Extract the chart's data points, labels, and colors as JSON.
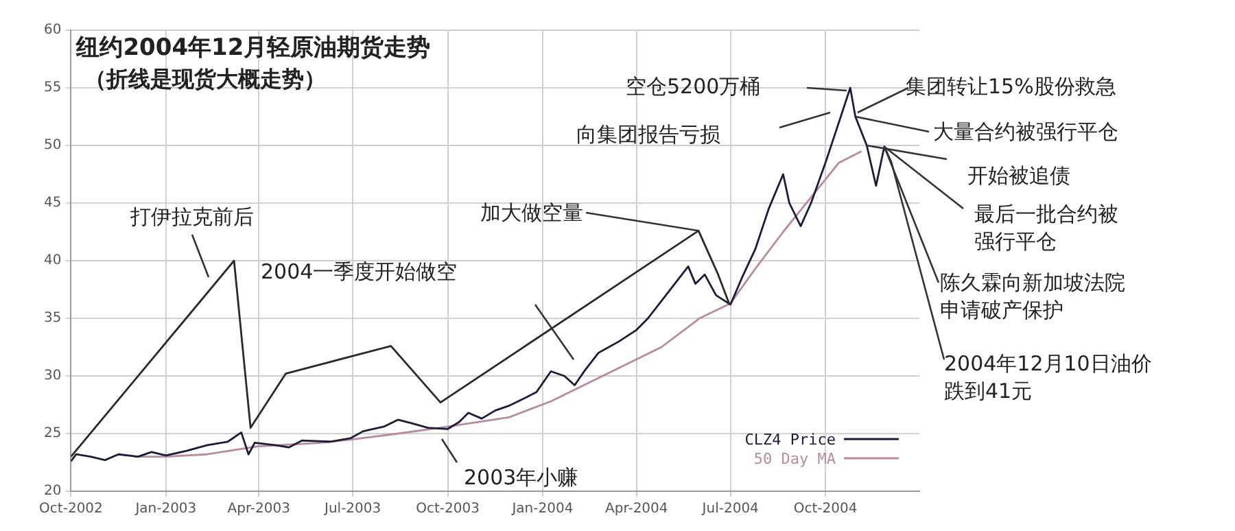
{
  "chart_data": {
    "type": "line",
    "title": "纽约2004年12月轻原油期货走势",
    "subtitle": "（折线是现货大概走势）",
    "xlim": [
      "2002-10-01",
      "2004-12-31"
    ],
    "xticks": [
      {
        "value": "2002-10-01",
        "label": "Oct-2002"
      },
      {
        "value": "2003-01-01",
        "label": "Jan-2003"
      },
      {
        "value": "2003-04-01",
        "label": "Apr-2003"
      },
      {
        "value": "2003-07-01",
        "label": "Jul-2003"
      },
      {
        "value": "2003-10-01",
        "label": "Oct-2003"
      },
      {
        "value": "2004-01-01",
        "label": "Jan-2004"
      },
      {
        "value": "2004-04-01",
        "label": "Apr-2004"
      },
      {
        "value": "2004-07-01",
        "label": "Jul-2004"
      },
      {
        "value": "2004-10-01",
        "label": "Oct-2004"
      }
    ],
    "ylim": [
      20,
      60
    ],
    "yticks": [
      20,
      25,
      30,
      35,
      40,
      45,
      50,
      55,
      60
    ],
    "grid": true,
    "legend": "bottom right",
    "marker": "none",
    "series": [
      {
        "color": "#2a2a2a",
        "x": [
          "2002-10-01",
          "2003-03-08",
          "2003-03-24",
          "2003-04-27",
          "2003-08-07",
          "2003-09-24",
          "2004-05-31",
          "2004-06-19",
          "2004-06-30"
        ],
        "values": [
          23.0,
          40.0,
          25.5,
          30.2,
          32.6,
          27.7,
          42.6,
          38.8,
          36.2
        ]
      },
      {
        "name": "CLZ4 Price",
        "color": "#1c1c3a",
        "x": [
          "2002-10-01",
          "2002-10-06",
          "2002-10-20",
          "2002-11-03",
          "2002-11-16",
          "2002-12-05",
          "2002-12-18",
          "2003-01-01",
          "2003-01-21",
          "2003-02-10",
          "2003-03-02",
          "2003-03-15",
          "2003-03-22",
          "2003-03-28",
          "2003-04-17",
          "2003-04-30",
          "2003-05-13",
          "2003-06-09",
          "2003-06-29",
          "2003-07-11",
          "2003-07-31",
          "2003-08-14",
          "2003-08-27",
          "2003-09-12",
          "2003-10-01",
          "2003-10-12",
          "2003-10-21",
          "2003-11-03",
          "2003-11-16",
          "2003-11-29",
          "2003-12-13",
          "2003-12-26",
          "2004-01-09",
          "2004-01-22",
          "2004-02-01",
          "2004-02-11",
          "2004-02-24",
          "2004-03-15",
          "2004-04-01",
          "2004-04-12",
          "2004-04-25",
          "2004-05-08",
          "2004-05-21",
          "2004-05-28",
          "2004-06-06",
          "2004-06-17",
          "2004-07-01",
          "2004-07-12",
          "2004-07-25",
          "2004-08-07",
          "2004-08-21",
          "2004-08-27",
          "2004-09-07",
          "2004-09-17",
          "2004-10-01",
          "2004-10-14",
          "2004-10-25",
          "2004-10-30",
          "2004-11-10",
          "2004-11-19",
          "2004-11-27",
          "2004-12-04"
        ],
        "values": [
          22.6,
          23.2,
          23.0,
          22.7,
          23.2,
          23.0,
          23.4,
          23.1,
          23.5,
          24.0,
          24.3,
          25.1,
          23.2,
          24.2,
          24.0,
          23.8,
          24.4,
          24.3,
          24.6,
          25.2,
          25.6,
          26.2,
          25.9,
          25.5,
          25.4,
          26.0,
          26.8,
          26.3,
          27.0,
          27.4,
          28.0,
          28.6,
          30.4,
          30.0,
          29.2,
          30.5,
          32.0,
          33.0,
          34.0,
          35.0,
          36.5,
          38.0,
          39.5,
          38.0,
          38.8,
          37.0,
          36.2,
          38.5,
          41.0,
          44.5,
          47.5,
          45.0,
          43.0,
          45.0,
          48.5,
          52.0,
          55.0,
          52.5,
          50.0,
          46.5,
          49.9,
          48.5
        ]
      },
      {
        "name": "50 Day MA",
        "color": "#b88a9c",
        "x": [
          "2002-12-01",
          "2003-01-01",
          "2003-02-10",
          "2003-04-01",
          "2003-06-01",
          "2003-07-01",
          "2003-08-14",
          "2003-10-01",
          "2003-11-29",
          "2004-01-09",
          "2004-03-15",
          "2004-04-25",
          "2004-06-01",
          "2004-07-01",
          "2004-07-25",
          "2004-08-21",
          "2004-09-17",
          "2004-10-14",
          "2004-11-05"
        ],
        "values": [
          23.0,
          23.0,
          23.2,
          23.9,
          24.2,
          24.5,
          25.0,
          25.6,
          26.4,
          27.8,
          30.7,
          32.5,
          35.0,
          36.3,
          39.3,
          42.5,
          45.5,
          48.5,
          49.5
        ]
      }
    ],
    "annotations": [
      "打伊拉克前后",
      "2004一季度开始做空",
      {
        "text": "加大做空量",
        "x": "2004-05-31",
        "y": 42.6
      },
      "2003年小赚",
      "空仓5200万桶",
      "向集团报告亏损",
      "集团转让15%股份救急",
      {
        "text": "大量合约被强行平仓",
        "x": "2004-10-30",
        "y": 52.5
      },
      {
        "text": "开始被追债",
        "x": "2004-11-10",
        "y": 50.0
      },
      {
        "text": "最后一批合约被强行平仓",
        "x": "2004-11-27",
        "y": 49.9
      },
      {
        "text": "陈久霖向新加坡法院申请破产保护",
        "x": "2004-11-27",
        "y": 49.9
      },
      {
        "text": "2004年12月10日油价跌到41元",
        "x": "2004-12-04",
        "y": 48.5
      }
    ]
  }
}
